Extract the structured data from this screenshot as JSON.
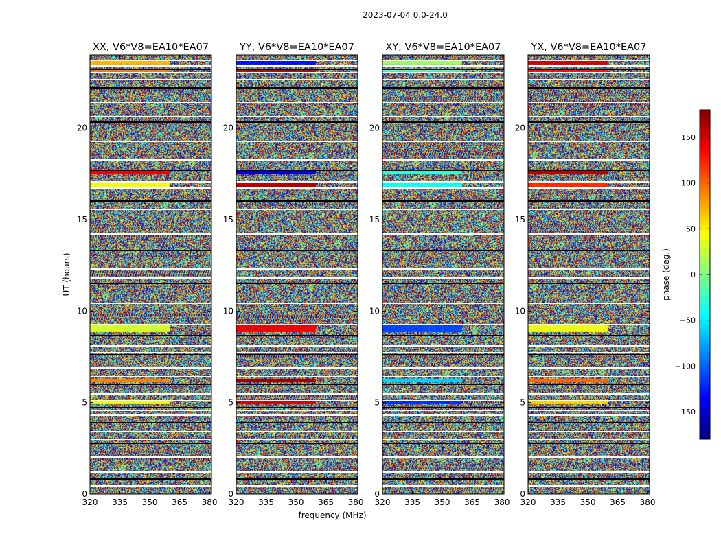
{
  "figure_title": "2023-07-04 0.0-24.0",
  "chart_data": {
    "type": "heatmap",
    "suptitle": "2023-07-04 0.0-24.0",
    "xlabel": "frequency (MHz)",
    "ylabel": "UT (hours)",
    "xlim": [
      320,
      381
    ],
    "ylim": [
      0,
      24
    ],
    "xticks": [
      320,
      335,
      350,
      365,
      380
    ],
    "yticks": [
      0,
      5,
      10,
      15,
      20
    ],
    "panels": [
      {
        "title": "XX, V6*V8=EA10*EA07",
        "polarization": "XX"
      },
      {
        "title": "YY, V6*V8=EA10*EA07",
        "polarization": "YY"
      },
      {
        "title": "XY, V6*V8=EA10*EA07",
        "polarization": "XY"
      },
      {
        "title": "YX, V6*V8=EA10*EA07",
        "polarization": "YX"
      }
    ],
    "colorbar": {
      "label": "phase (deg.)",
      "range": [
        -180,
        180
      ],
      "ticks": [
        -150,
        -100,
        -50,
        0,
        50,
        100,
        150
      ],
      "colormap": "jet"
    },
    "gaps_ut": [
      0.5,
      0.85,
      1.25,
      2.05,
      2.8,
      3.05,
      3.45,
      3.95,
      4.35,
      4.6,
      4.75,
      5.15,
      5.5,
      6.05,
      6.45,
      6.95,
      7.65,
      7.75,
      8.15,
      8.7,
      9.3,
      10.45,
      11.55,
      11.85,
      12.35,
      13.35,
      14.25,
      15.6,
      16.05,
      16.75,
      17.1,
      17.75,
      18.3,
      19.3,
      20.35,
      20.65,
      21.45,
      22.25,
      22.7,
      23.05,
      23.25,
      23.45,
      23.75
    ],
    "coherent_bands": [
      {
        "ut": [
          8.9,
          9.3
        ],
        "phase": [
          30,
          140,
          -110,
          40
        ]
      },
      {
        "ut": [
          5.0,
          5.15
        ],
        "phase": [
          40,
          150,
          -120,
          60
        ]
      },
      {
        "ut": [
          6.15,
          6.3
        ],
        "phase": [
          90,
          170,
          -60,
          100
        ]
      },
      {
        "ut": [
          16.8,
          17.05
        ],
        "phase": [
          40,
          160,
          -40,
          120
        ]
      },
      {
        "ut": [
          17.5,
          17.7
        ],
        "phase": [
          140,
          -150,
          -30,
          160
        ]
      },
      {
        "ut": [
          23.1,
          23.25
        ],
        "phase": [
          90,
          160,
          -20,
          130
        ]
      },
      {
        "ut": [
          23.5,
          23.7
        ],
        "phase": [
          70,
          -130,
          10,
          150
        ]
      }
    ]
  }
}
